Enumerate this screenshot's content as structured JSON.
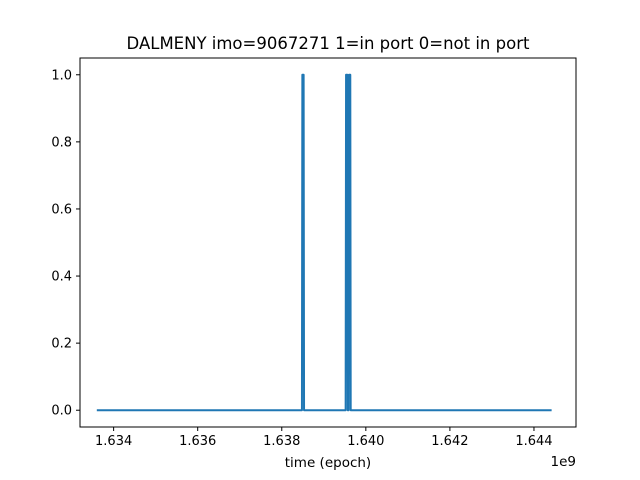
{
  "chart_data": {
    "type": "line",
    "title": "DALMENY imo=9067271 1=in port 0=not in port",
    "xlabel": "time (epoch)",
    "ylabel": "",
    "x_offset_label": "1e9",
    "xlim": [
      1.6332,
      1.645
    ],
    "ylim": [
      -0.05,
      1.05
    ],
    "x_ticks": [
      1.634,
      1.636,
      1.638,
      1.64,
      1.642,
      1.644
    ],
    "x_tick_labels": [
      "1.634",
      "1.636",
      "1.638",
      "1.640",
      "1.642",
      "1.644"
    ],
    "y_ticks": [
      0.0,
      0.2,
      0.4,
      0.6,
      0.8,
      1.0
    ],
    "y_tick_labels": [
      "0.0",
      "0.2",
      "0.4",
      "0.6",
      "0.8",
      "1.0"
    ],
    "grid": false,
    "series": [
      {
        "color": "#1f77b4",
        "x": [
          1.6336,
          1.63848,
          1.63849,
          1.63852,
          1.63853,
          1.63952,
          1.63953,
          1.63956,
          1.63957,
          1.63959,
          1.6396,
          1.63963,
          1.63964,
          1.64442
        ],
        "y": [
          0,
          0,
          1,
          1,
          0,
          0,
          1,
          1,
          0,
          0,
          1,
          1,
          0,
          0
        ]
      }
    ]
  }
}
